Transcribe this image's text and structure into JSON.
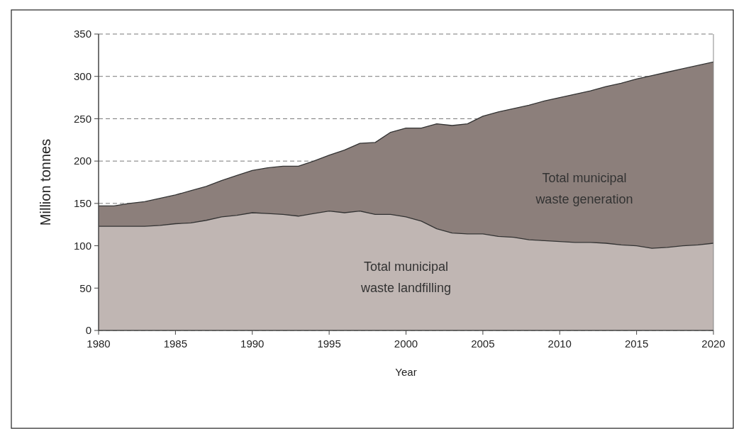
{
  "chart_data": {
    "type": "area",
    "xlabel": "Year",
    "ylabel": "Million tonnes",
    "x": [
      1980,
      1981,
      1982,
      1983,
      1984,
      1985,
      1986,
      1987,
      1988,
      1989,
      1990,
      1991,
      1992,
      1993,
      1994,
      1995,
      1996,
      1997,
      1998,
      1999,
      2000,
      2001,
      2002,
      2003,
      2004,
      2005,
      2006,
      2007,
      2008,
      2009,
      2010,
      2011,
      2012,
      2013,
      2014,
      2015,
      2016,
      2017,
      2018,
      2019,
      2020
    ],
    "series": [
      {
        "name": "Total municipal waste generation",
        "color": "#8c7f7b",
        "values": [
          147,
          147,
          150,
          152,
          156,
          160,
          165,
          170,
          177,
          183,
          189,
          192,
          194,
          194,
          200,
          207,
          213,
          221,
          222,
          234,
          239,
          239,
          244,
          242,
          244,
          253,
          258,
          262,
          266,
          271,
          275,
          279,
          283,
          288,
          292,
          297,
          301,
          305,
          309,
          313,
          317
        ]
      },
      {
        "name": "Total municipal waste landfilling",
        "color": "#c0b6b3",
        "values": [
          123,
          123,
          123,
          123,
          124,
          126,
          127,
          130,
          134,
          136,
          139,
          138,
          137,
          135,
          138,
          141,
          139,
          141,
          137,
          137,
          134,
          129,
          120,
          115,
          114,
          114,
          111,
          110,
          107,
          106,
          105,
          104,
          104,
          103,
          101,
          100,
          97,
          98,
          100,
          101,
          103
        ]
      }
    ],
    "xlim": [
      1980,
      2020
    ],
    "xticks": [
      1980,
      1985,
      1990,
      1995,
      2000,
      2005,
      2010,
      2015,
      2020
    ],
    "ylim": [
      0,
      350
    ],
    "yticks": [
      0,
      50,
      100,
      150,
      200,
      250,
      300,
      350
    ],
    "grid": "y",
    "line_style": "solid"
  }
}
